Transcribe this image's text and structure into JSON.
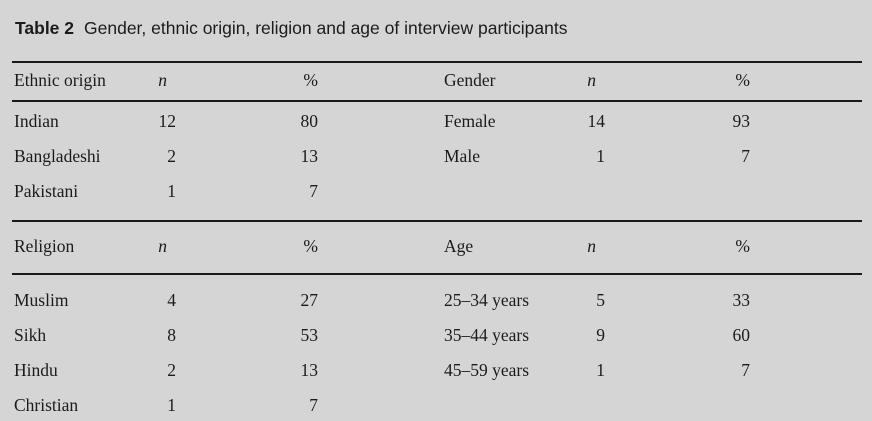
{
  "caption": {
    "label": "Table 2",
    "text": "Gender, ethnic origin, religion and age of interview participants"
  },
  "columns": {
    "n": "n",
    "pct": "%"
  },
  "tables": {
    "ethnic_origin": {
      "header": "Ethnic origin",
      "rows": [
        {
          "label": "Indian",
          "n": "12",
          "pct": "80"
        },
        {
          "label": "Bangladeshi",
          "n": "2",
          "pct": "13"
        },
        {
          "label": "Pakistani",
          "n": "1",
          "pct": "7"
        }
      ]
    },
    "gender": {
      "header": "Gender",
      "rows": [
        {
          "label": "Female",
          "n": "14",
          "pct": "93"
        },
        {
          "label": "Male",
          "n": "1",
          "pct": "7"
        }
      ]
    },
    "religion": {
      "header": "Religion",
      "rows": [
        {
          "label": "Muslim",
          "n": "4",
          "pct": "27"
        },
        {
          "label": "Sikh",
          "n": "8",
          "pct": "53"
        },
        {
          "label": "Hindu",
          "n": "2",
          "pct": "13"
        },
        {
          "label": "Christian",
          "n": "1",
          "pct": "7"
        }
      ]
    },
    "age": {
      "header": "Age",
      "rows": [
        {
          "label": "25–34 years",
          "n": "5",
          "pct": "33"
        },
        {
          "label": "35–44 years",
          "n": "9",
          "pct": "60"
        },
        {
          "label": "45–59 years",
          "n": "1",
          "pct": "7"
        }
      ]
    }
  },
  "chart_data": [
    {
      "type": "table",
      "title": "Ethnic origin",
      "columns": [
        "Ethnic origin",
        "n",
        "%"
      ],
      "rows": [
        [
          "Indian",
          12,
          80
        ],
        [
          "Bangladeshi",
          2,
          13
        ],
        [
          "Pakistani",
          1,
          7
        ]
      ]
    },
    {
      "type": "table",
      "title": "Gender",
      "columns": [
        "Gender",
        "n",
        "%"
      ],
      "rows": [
        [
          "Female",
          14,
          93
        ],
        [
          "Male",
          1,
          7
        ]
      ]
    },
    {
      "type": "table",
      "title": "Religion",
      "columns": [
        "Religion",
        "n",
        "%"
      ],
      "rows": [
        [
          "Muslim",
          4,
          27
        ],
        [
          "Sikh",
          8,
          53
        ],
        [
          "Hindu",
          2,
          13
        ],
        [
          "Christian",
          1,
          7
        ]
      ]
    },
    {
      "type": "table",
      "title": "Age",
      "columns": [
        "Age",
        "n",
        "%"
      ],
      "rows": [
        [
          "25–34 years",
          5,
          33
        ],
        [
          "35–44 years",
          9,
          60
        ],
        [
          "45–59 years",
          1,
          7
        ]
      ]
    }
  ],
  "colors": {
    "background": "#d4d5d4",
    "text": "#1b1b1b",
    "rule": "#1a1a1a"
  }
}
